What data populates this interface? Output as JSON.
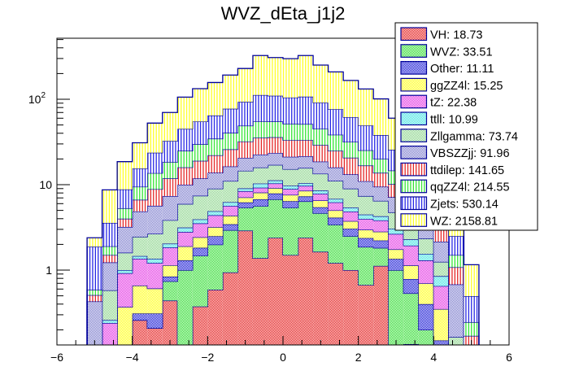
{
  "chart_data": {
    "type": "bar",
    "subtype": "stacked-histogram",
    "title": "WVZ_dEta_j1j2",
    "xlabel": "",
    "ylabel": "",
    "xlim": [
      -6,
      6
    ],
    "ylim": [
      0.133,
      518
    ],
    "yscale": "log",
    "grid": false,
    "legend_position": "top-right",
    "x_ticks": [
      {
        "value": -6,
        "label": "−6"
      },
      {
        "value": -4,
        "label": "−4"
      },
      {
        "value": -2,
        "label": "−2"
      },
      {
        "value": 0,
        "label": "0"
      },
      {
        "value": 2,
        "label": "2"
      },
      {
        "value": 4,
        "label": "4"
      },
      {
        "value": 6,
        "label": "6"
      }
    ],
    "y_ticks": [
      {
        "value": 1,
        "label": "1"
      },
      {
        "value": 10,
        "label": "10"
      },
      {
        "value": 100,
        "label": "10",
        "superscript": "2"
      }
    ],
    "bin_edges_start": -5.2,
    "bin_width": 0.4,
    "n_bins": 26,
    "series": [
      {
        "name": "VH",
        "legend": "VH: 18.73",
        "color": "#e00000",
        "fill": "crosshatch",
        "values": [
          0,
          0,
          0,
          0.26,
          0.21,
          0.44,
          0.1,
          0.375,
          0.59,
          0.94,
          2.9,
          1.38,
          2.39,
          1.5,
          2.39,
          1.64,
          1.21,
          1.0,
          0.67,
          1.12,
          0.1,
          0.136,
          0,
          0,
          0,
          0
        ]
      },
      {
        "name": "WVZ",
        "legend": "WVZ: 33.51",
        "color": "#18d818",
        "fill": "crosshatch",
        "values": [
          0,
          0,
          0,
          0,
          0,
          0.3,
          0.9,
          1.1,
          1.4,
          2.0,
          2.5,
          4.24,
          4.35,
          3.9,
          4.0,
          3.0,
          2.2,
          1.5,
          1.2,
          0.7,
          0.9,
          0.4,
          0.2,
          0,
          0,
          0
        ]
      },
      {
        "name": "Other",
        "legend": "Other: 11.11",
        "color": "#0000d0",
        "fill": "crosshatch",
        "values": [
          0,
          0,
          0.12,
          0.05,
          0.1,
          0.1,
          0.3,
          0.35,
          0.5,
          0.5,
          0.8,
          1.12,
          1.15,
          1.0,
          0.9,
          0.8,
          0.7,
          0.55,
          0.5,
          0.4,
          0.35,
          0.25,
          0.2,
          0.15,
          0,
          0
        ]
      },
      {
        "name": "ggZZ4l",
        "legend": "ggZZ4l: 15.25",
        "color": "#ffff00",
        "fill": "crosshatch",
        "values": [
          0,
          0,
          0.25,
          0.35,
          0.3,
          0.3,
          0.6,
          0.6,
          0.7,
          0.9,
          0.9,
          1.35,
          1.25,
          1.2,
          1.2,
          1.1,
          0.9,
          0.7,
          0.6,
          0.6,
          0.4,
          0.35,
          0.3,
          0.2,
          0,
          0
        ]
      },
      {
        "name": "tZ",
        "legend": "tZ: 22.38",
        "color": "#e020e0",
        "fill": "crosshatch",
        "values": [
          0,
          0.24,
          0.55,
          0.7,
          0.6,
          0.7,
          0.9,
          1.1,
          1.2,
          1.3,
          1.3,
          1.13,
          1.2,
          1.3,
          1.2,
          1.3,
          1.2,
          1.1,
          1.0,
          1.0,
          0.9,
          0.8,
          0.6,
          0.3,
          0,
          0
        ]
      },
      {
        "name": "ttll",
        "legend": "ttll: 10.99",
        "color": "#30e0e0",
        "fill": "crosshatch",
        "values": [
          0,
          0.02,
          0.08,
          0.1,
          0.15,
          0.2,
          0.35,
          0.4,
          0.5,
          0.6,
          0.65,
          1.08,
          0.9,
          0.8,
          0.7,
          0.7,
          0.6,
          0.55,
          0.5,
          0.45,
          0.4,
          0.35,
          0.25,
          0.2,
          0,
          0
        ]
      },
      {
        "name": "Zllgamma",
        "legend": "Zllgamma: 73.74",
        "color": "#80d080",
        "fill": "crosshatch",
        "values": [
          0,
          0.32,
          0.6,
          1.0,
          1.3,
          1.8,
          2.8,
          3.5,
          4.1,
          4.8,
          5.5,
          5.6,
          5.8,
          5.5,
          5.3,
          4.9,
          4.3,
          3.6,
          2.9,
          2.2,
          1.7,
          1.2,
          0.8,
          0.4,
          0.165,
          0
        ]
      },
      {
        "name": "VBSZZjj",
        "legend": "VBSZZjj: 91.96",
        "color": "#7070c8",
        "fill": "crosshatch",
        "values": [
          0.43,
          0.65,
          1.6,
          2.4,
          3.0,
          3.5,
          4.0,
          4.4,
          4.8,
          5.3,
          6.0,
          6.6,
          6.4,
          6.0,
          5.8,
          5.2,
          4.8,
          4.2,
          3.6,
          3.0,
          2.4,
          1.8,
          1.3,
          0.9,
          0.515,
          0.05
        ]
      },
      {
        "name": "ttdilep",
        "legend": "ttdilep: 141.65",
        "color": "#e00000",
        "fill": "vertical",
        "values": [
          0.08,
          0.27,
          0.8,
          1.8,
          3.2,
          4.5,
          6.0,
          7.2,
          8.3,
          9.6,
          11.5,
          12.9,
          12.5,
          12.0,
          11.8,
          10.5,
          9.0,
          7.5,
          5.8,
          4.3,
          3.0,
          2.0,
          1.2,
          0.8,
          0.4,
          0.12
        ]
      },
      {
        "name": "qqZZ4l",
        "legend": "qqZZ4l: 214.55",
        "color": "#10e010",
        "fill": "vertical",
        "values": [
          0.08,
          0.4,
          1.3,
          2.8,
          4.8,
          6.6,
          9.0,
          10.8,
          12.5,
          14.5,
          17.0,
          19.6,
          19.0,
          18.5,
          18.0,
          16.0,
          13.5,
          11.0,
          8.5,
          6.3,
          4.5,
          3.2,
          2.2,
          1.3,
          0.42,
          0.076
        ]
      },
      {
        "name": "Zjets",
        "legend": "Zjets: 530.14",
        "color": "#0000e0",
        "fill": "vertical",
        "values": [
          1.29,
          1.67,
          3.5,
          6,
          10,
          14,
          20,
          25,
          30,
          37,
          44,
          57,
          55,
          53,
          56,
          46,
          38,
          30,
          24,
          18,
          11,
          8,
          5,
          3,
          1.0,
          0.25
        ]
      },
      {
        "name": "WZ",
        "legend": "WZ: 2158.81",
        "color": "#ffff00",
        "fill": "vertical",
        "values": [
          0.51,
          5.13,
          9.8,
          15.5,
          28.9,
          37.6,
          61,
          78.2,
          92.4,
          114.6,
          136,
          213,
          198,
          194,
          218,
          160,
          132.6,
          104.3,
          82.7,
          62.9,
          34.4,
          26.5,
          17.95,
          10.75,
          6.0,
          0.66
        ]
      }
    ],
    "stack_order": "bottom-to-top",
    "outline_color": "#000099"
  }
}
